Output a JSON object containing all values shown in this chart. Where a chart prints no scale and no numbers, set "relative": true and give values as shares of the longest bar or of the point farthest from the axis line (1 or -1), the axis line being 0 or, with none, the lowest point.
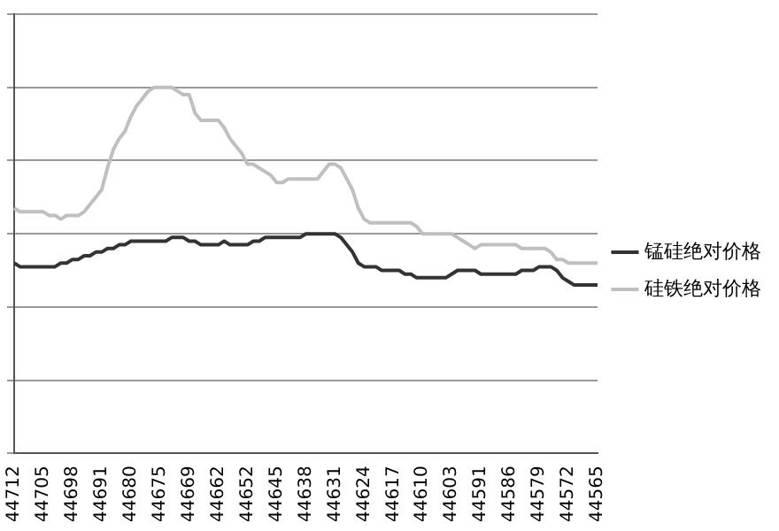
{
  "chart_data": {
    "type": "line",
    "relative": true,
    "grid": "y",
    "legend": "right",
    "marker": "none",
    "line_style": "solid",
    "categories": [
      "44712",
      null,
      null,
      null,
      null,
      "44705",
      null,
      null,
      null,
      null,
      "44698",
      null,
      null,
      null,
      null,
      "44691",
      null,
      null,
      null,
      null,
      "44680",
      null,
      null,
      null,
      null,
      "44675",
      null,
      null,
      null,
      null,
      "44669",
      null,
      null,
      null,
      null,
      "44662",
      null,
      null,
      null,
      null,
      "44652",
      null,
      null,
      null,
      null,
      "44645",
      null,
      null,
      null,
      null,
      "44638",
      null,
      null,
      null,
      null,
      "44631",
      null,
      null,
      null,
      null,
      "44624",
      null,
      null,
      null,
      null,
      "44617",
      null,
      null,
      null,
      null,
      "44610",
      null,
      null,
      null,
      null,
      "44603",
      null,
      null,
      null,
      null,
      "44591",
      null,
      null,
      null,
      null,
      "44586",
      null,
      null,
      null,
      null,
      "44579",
      null,
      null,
      null,
      null,
      "44572",
      null,
      null,
      null,
      null,
      "44565"
    ],
    "series": [
      {
        "name": "锰硅绝对价格",
        "color": "#333333",
        "values": [
          0.52,
          0.51,
          0.51,
          0.51,
          0.51,
          0.51,
          0.51,
          0.51,
          0.52,
          0.52,
          0.53,
          0.53,
          0.54,
          0.54,
          0.55,
          0.55,
          0.56,
          0.56,
          0.57,
          0.57,
          0.58,
          0.58,
          0.58,
          0.58,
          0.58,
          0.58,
          0.58,
          0.59,
          0.59,
          0.59,
          0.58,
          0.58,
          0.57,
          0.57,
          0.57,
          0.57,
          0.58,
          0.57,
          0.57,
          0.57,
          0.57,
          0.58,
          0.58,
          0.59,
          0.59,
          0.59,
          0.59,
          0.59,
          0.59,
          0.59,
          0.6,
          0.6,
          0.6,
          0.6,
          0.6,
          0.6,
          0.59,
          0.57,
          0.55,
          0.52,
          0.51,
          0.51,
          0.51,
          0.5,
          0.5,
          0.5,
          0.5,
          0.49,
          0.49,
          0.48,
          0.48,
          0.48,
          0.48,
          0.48,
          0.48,
          0.49,
          0.5,
          0.5,
          0.5,
          0.5,
          0.49,
          0.49,
          0.49,
          0.49,
          0.49,
          0.49,
          0.49,
          0.5,
          0.5,
          0.5,
          0.51,
          0.51,
          0.51,
          0.5,
          0.48,
          0.47,
          0.46,
          0.46,
          0.46,
          0.46,
          0.46
        ]
      },
      {
        "name": "硅铁绝对价格",
        "color": "#bfbfbf",
        "values": [
          0.67,
          0.66,
          0.66,
          0.66,
          0.66,
          0.66,
          0.65,
          0.65,
          0.64,
          0.65,
          0.65,
          0.65,
          0.66,
          0.68,
          0.7,
          0.72,
          0.78,
          0.83,
          0.86,
          0.88,
          0.92,
          0.95,
          0.97,
          0.99,
          1,
          1,
          1,
          1,
          0.99,
          0.98,
          0.98,
          0.93,
          0.91,
          0.91,
          0.91,
          0.91,
          0.89,
          0.86,
          0.84,
          0.82,
          0.79,
          0.79,
          0.78,
          0.77,
          0.76,
          0.74,
          0.74,
          0.75,
          0.75,
          0.75,
          0.75,
          0.75,
          0.75,
          0.77,
          0.79,
          0.79,
          0.78,
          0.75,
          0.72,
          0.67,
          0.64,
          0.63,
          0.63,
          0.63,
          0.63,
          0.63,
          0.63,
          0.63,
          0.63,
          0.62,
          0.6,
          0.6,
          0.6,
          0.6,
          0.6,
          0.6,
          0.59,
          0.58,
          0.57,
          0.56,
          0.57,
          0.57,
          0.57,
          0.57,
          0.57,
          0.57,
          0.57,
          0.56,
          0.56,
          0.56,
          0.56,
          0.56,
          0.55,
          0.53,
          0.53,
          0.52,
          0.52,
          0.52,
          0.52,
          0.52,
          0.52
        ]
      }
    ]
  }
}
